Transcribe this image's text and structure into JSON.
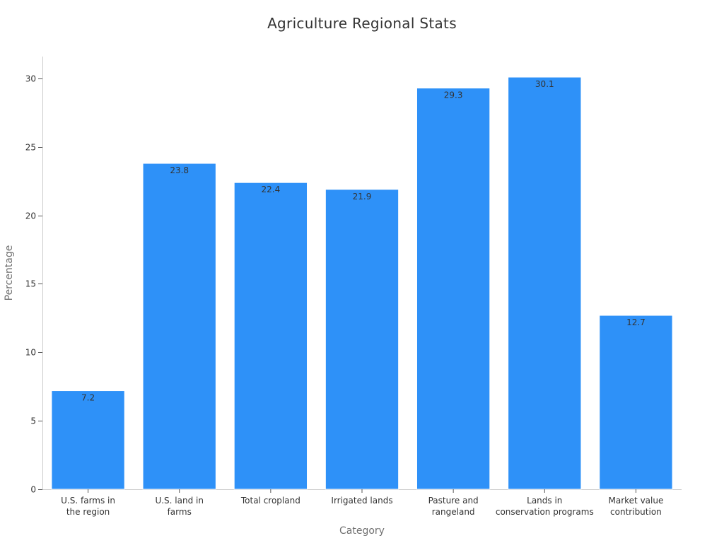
{
  "chart_data": {
    "type": "bar",
    "title": "Agriculture Regional Stats",
    "xlabel": "Category",
    "ylabel": "Percentage",
    "categories": [
      [
        "U.S. farms in",
        "the region"
      ],
      [
        "U.S. land in",
        "farms"
      ],
      [
        "Total cropland"
      ],
      [
        "Irrigated lands"
      ],
      [
        "Pasture and",
        "rangeland"
      ],
      [
        "Lands in",
        "conservation programs"
      ],
      [
        "Market value",
        "contribution"
      ]
    ],
    "values": [
      7.2,
      23.8,
      22.4,
      21.9,
      29.3,
      30.1,
      12.7
    ],
    "data_labels": [
      "7.2",
      "23.8",
      "22.4",
      "21.9",
      "29.3",
      "30.1",
      "12.7"
    ],
    "y_ticks": [
      0,
      5,
      10,
      15,
      20,
      25,
      30
    ],
    "ylim": [
      0,
      31.6
    ],
    "grid": false,
    "legend": "none",
    "colors": {
      "bar": "#2e91f8"
    }
  }
}
